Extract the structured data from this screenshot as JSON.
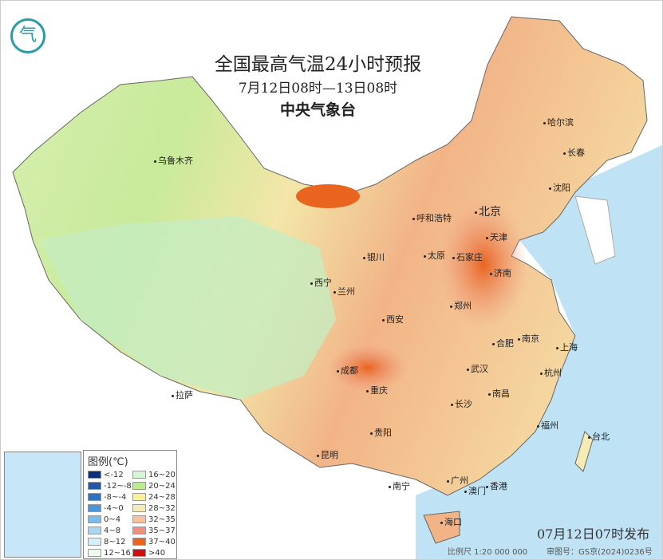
{
  "header": {
    "title": "全国最高气温24小时预报",
    "period": "7月12日08时—13日08时",
    "issuer": "中央气象台",
    "logo_icon": "cma-logo"
  },
  "cities": [
    {
      "name": "乌鲁木齐"
    },
    {
      "name": "哈尔滨"
    },
    {
      "name": "长春"
    },
    {
      "name": "沈阳"
    },
    {
      "name": "呼和浩特"
    },
    {
      "name": "北京"
    },
    {
      "name": "天津"
    },
    {
      "name": "银川"
    },
    {
      "name": "太原"
    },
    {
      "name": "石家庄"
    },
    {
      "name": "济南"
    },
    {
      "name": "西宁"
    },
    {
      "name": "兰州"
    },
    {
      "name": "郑州"
    },
    {
      "name": "西安"
    },
    {
      "name": "合肥"
    },
    {
      "name": "南京"
    },
    {
      "name": "上海"
    },
    {
      "name": "成都"
    },
    {
      "name": "武汉"
    },
    {
      "name": "杭州"
    },
    {
      "name": "拉萨"
    },
    {
      "name": "重庆"
    },
    {
      "name": "南昌"
    },
    {
      "name": "长沙"
    },
    {
      "name": "福州"
    },
    {
      "name": "台北"
    },
    {
      "name": "贵阳"
    },
    {
      "name": "昆明"
    },
    {
      "name": "南宁"
    },
    {
      "name": "广州"
    },
    {
      "name": "澳门"
    },
    {
      "name": "香港"
    },
    {
      "name": "海口"
    }
  ],
  "legend": {
    "title": "图例(℃)",
    "items": [
      {
        "label": "<-12",
        "color": "#0b2f7a"
      },
      {
        "label": "16~20",
        "color": "#d6f5d6"
      },
      {
        "label": "-12~-8",
        "color": "#1f58a6"
      },
      {
        "label": "20~24",
        "color": "#b9ec8f"
      },
      {
        "label": "-8~-4",
        "color": "#2f72c4"
      },
      {
        "label": "24~28",
        "color": "#f7f29a"
      },
      {
        "label": "-4~0",
        "color": "#4a95dc"
      },
      {
        "label": "28~32",
        "color": "#f5ecb5"
      },
      {
        "label": "0~4",
        "color": "#7dbbed"
      },
      {
        "label": "32~35",
        "color": "#f6c39c"
      },
      {
        "label": "4~8",
        "color": "#a9d7f3"
      },
      {
        "label": "35~37",
        "color": "#ef8f7d"
      },
      {
        "label": "8~12",
        "color": "#d4effa"
      },
      {
        "label": "37~40",
        "color": "#e8641f"
      },
      {
        "label": "12~16",
        "color": "#eefaf0"
      },
      {
        "label": ">40",
        "color": "#cc1010"
      }
    ]
  },
  "issued": "07月12日07时发布",
  "scale": "比例尺 1:20 000 000",
  "approval": "审图号：GS京(2024)0236号"
}
